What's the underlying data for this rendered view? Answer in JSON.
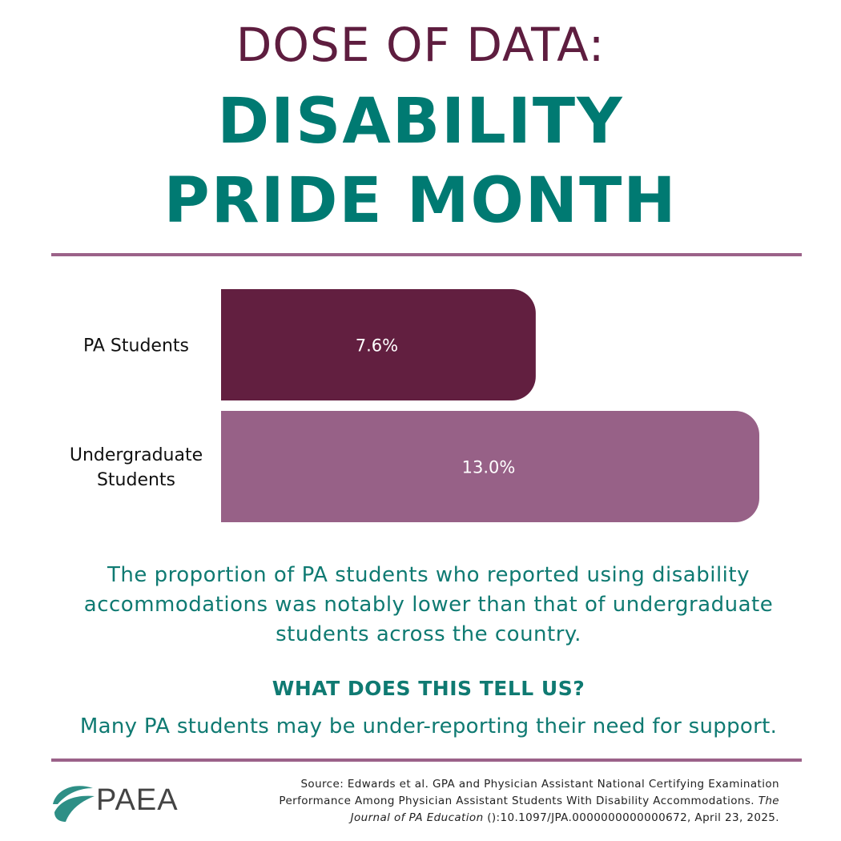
{
  "header": {
    "kicker": "DOSE OF DATA:",
    "title_line1": "DISABILITY",
    "title_line2": "PRIDE MONTH"
  },
  "colors": {
    "kicker": "#5e1d3f",
    "title": "#007a72",
    "rule": "#9b6289",
    "bar_pa": "#621f40",
    "bar_undergrad": "#976187",
    "body_text": "#0f7a72",
    "logo_leaf": "#2e8f86"
  },
  "chart_data": {
    "type": "bar",
    "orientation": "horizontal",
    "categories": [
      [
        "PA Students"
      ],
      [
        "Undergraduate",
        "Students"
      ]
    ],
    "values": [
      7.6,
      13.0
    ],
    "data_labels": [
      "7.6%",
      "13.0%"
    ],
    "bar_colors": [
      "#621f40",
      "#976187"
    ],
    "xlim": [
      0,
      13.0
    ],
    "grid": false,
    "legend": "none",
    "title": "",
    "xlabel": "",
    "ylabel": ""
  },
  "summary_text": "The proportion of PA students who reported using disability accommodations was notably lower than that of undergraduate students across the country.",
  "subhead": "WHAT DOES THIS TELL US?",
  "takeaway": "Many PA students may be under-reporting their need for support.",
  "logo": {
    "text": "PAEA",
    "icon": "leaf-swoosh-icon"
  },
  "source": {
    "line1": "Source: Edwards et al. GPA and Physician Assistant National Certifying Examination",
    "line2_plain": "Performance Among Physician Assistant Students With Disability Accommodations. ",
    "line2_italic": "The",
    "line3_italic": "Journal of PA Education",
    "line3_plain": " ():10.1097/JPA.0000000000000672, April 23, 2025."
  }
}
